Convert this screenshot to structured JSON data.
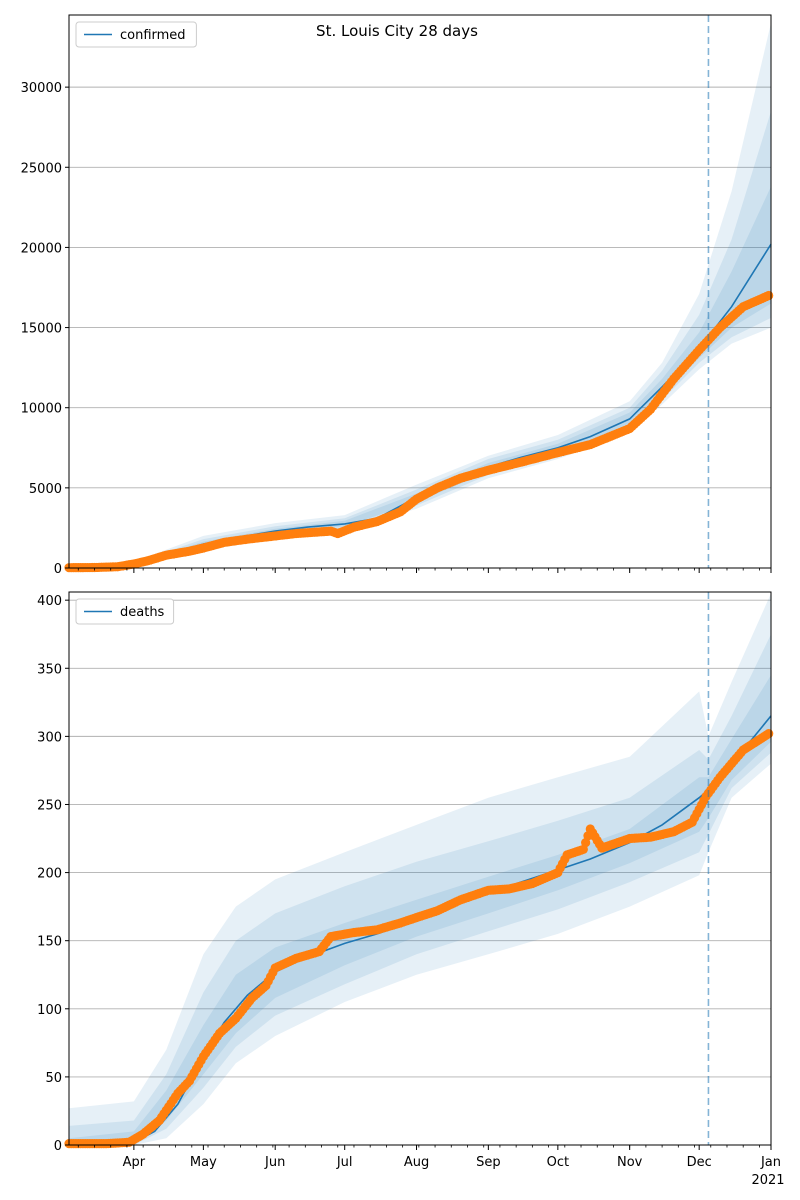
{
  "title": "St. Louis City 28 days",
  "colors": {
    "line": "#1f77b4",
    "band": "#1f77b4",
    "points": "#ff7f0e",
    "grid": "#b0b0b0",
    "vline": "#1f77b4"
  },
  "x_axis": {
    "start_date": "2020-03-04",
    "end_date": "2021-01-01",
    "tick_labels": [
      {
        "date": "2020-04-01",
        "label": "Apr"
      },
      {
        "date": "2020-05-01",
        "label": "May"
      },
      {
        "date": "2020-06-01",
        "label": "Jun"
      },
      {
        "date": "2020-07-01",
        "label": "Jul"
      },
      {
        "date": "2020-08-01",
        "label": "Aug"
      },
      {
        "date": "2020-09-01",
        "label": "Sep"
      },
      {
        "date": "2020-10-01",
        "label": "Oct"
      },
      {
        "date": "2020-11-01",
        "label": "Nov"
      },
      {
        "date": "2020-12-01",
        "label": "Dec"
      },
      {
        "date": "2021-01-01",
        "label": "Jan"
      }
    ],
    "year_label": "2021",
    "forecast_date": "2020-12-05"
  },
  "chart_data": [
    {
      "type": "line",
      "legend": "confirmed",
      "legend_position": "top-left",
      "grid": "horizontal",
      "ylim": [
        0,
        34500
      ],
      "yticks": [
        0,
        5000,
        10000,
        15000,
        20000,
        25000,
        30000
      ],
      "model": {
        "x": [
          "2020-03-04",
          "2020-03-20",
          "2020-04-01",
          "2020-04-15",
          "2020-05-01",
          "2020-05-15",
          "2020-06-01",
          "2020-06-15",
          "2020-07-01",
          "2020-07-15",
          "2020-08-01",
          "2020-08-15",
          "2020-09-01",
          "2020-09-15",
          "2020-10-01",
          "2020-10-15",
          "2020-11-01",
          "2020-11-15",
          "2020-12-01",
          "2020-12-15",
          "2021-01-01"
        ],
        "y": [
          0,
          10,
          200,
          800,
          1500,
          1900,
          2300,
          2550,
          2750,
          3100,
          4400,
          5500,
          6300,
          6900,
          7500,
          8200,
          9300,
          11300,
          13700,
          16300,
          20200
        ]
      },
      "bands": [
        {
          "x": [
            "2020-03-04",
            "2020-04-01",
            "2020-05-01",
            "2020-06-01",
            "2020-07-01",
            "2020-08-01",
            "2020-09-01",
            "2020-10-01",
            "2020-11-01",
            "2020-11-15",
            "2020-12-01",
            "2020-12-15",
            "2021-01-01"
          ],
          "lower": [
            0,
            120,
            1100,
            1800,
            2300,
            3700,
            5600,
            6800,
            8400,
            10200,
            12400,
            14000,
            15000
          ],
          "upper": [
            0,
            400,
            2000,
            2800,
            3300,
            5200,
            7000,
            8300,
            10400,
            12800,
            17100,
            23500,
            34000
          ]
        },
        {
          "x": [
            "2020-03-04",
            "2020-04-01",
            "2020-05-01",
            "2020-06-01",
            "2020-07-01",
            "2020-08-01",
            "2020-09-01",
            "2020-10-01",
            "2020-11-01",
            "2020-11-15",
            "2020-12-01",
            "2020-12-15",
            "2021-01-01"
          ],
          "lower": [
            0,
            150,
            1250,
            1950,
            2450,
            3900,
            5800,
            7000,
            8600,
            10500,
            12800,
            14400,
            15600
          ],
          "upper": [
            0,
            330,
            1800,
            2600,
            3100,
            4900,
            6800,
            8000,
            10000,
            12300,
            15800,
            20500,
            28500
          ]
        },
        {
          "x": [
            "2020-03-04",
            "2020-04-01",
            "2020-05-01",
            "2020-06-01",
            "2020-07-01",
            "2020-08-01",
            "2020-09-01",
            "2020-10-01",
            "2020-11-01",
            "2020-11-15",
            "2020-12-01",
            "2020-12-15",
            "2021-01-01"
          ],
          "lower": [
            0,
            170,
            1350,
            2100,
            2600,
            4100,
            6000,
            7200,
            8900,
            10800,
            13100,
            15000,
            16500
          ],
          "upper": [
            0,
            270,
            1650,
            2450,
            2950,
            4650,
            6550,
            7750,
            9700,
            11800,
            14700,
            18500,
            23800
          ]
        }
      ],
      "observed": {
        "x": [
          "2020-03-04",
          "2020-03-15",
          "2020-03-25",
          "2020-04-01",
          "2020-04-07",
          "2020-04-15",
          "2020-04-25",
          "2020-05-01",
          "2020-05-10",
          "2020-05-20",
          "2020-06-01",
          "2020-06-10",
          "2020-06-20",
          "2020-06-25",
          "2020-06-28",
          "2020-07-05",
          "2020-07-15",
          "2020-07-25",
          "2020-08-01",
          "2020-08-10",
          "2020-08-20",
          "2020-09-01",
          "2020-09-15",
          "2020-10-01",
          "2020-10-15",
          "2020-11-01",
          "2020-11-10",
          "2020-11-20",
          "2020-12-01",
          "2020-12-10",
          "2020-12-20",
          "2020-12-31"
        ],
        "y": [
          20,
          30,
          80,
          250,
          450,
          800,
          1050,
          1250,
          1600,
          1800,
          2000,
          2150,
          2250,
          2300,
          2150,
          2550,
          2900,
          3500,
          4300,
          5000,
          5600,
          6100,
          6600,
          7200,
          7700,
          8700,
          9900,
          11800,
          13600,
          15000,
          16300,
          17000
        ]
      }
    },
    {
      "type": "line",
      "legend": "deaths",
      "legend_position": "top-left",
      "grid": "horizontal",
      "ylim": [
        0,
        406
      ],
      "yticks": [
        0,
        50,
        100,
        150,
        200,
        250,
        300,
        350,
        400
      ],
      "model": {
        "x": [
          "2020-03-04",
          "2020-03-20",
          "2020-04-01",
          "2020-04-10",
          "2020-04-20",
          "2020-05-01",
          "2020-05-10",
          "2020-05-20",
          "2020-06-01",
          "2020-06-15",
          "2020-07-01",
          "2020-07-15",
          "2020-08-01",
          "2020-08-15",
          "2020-09-01",
          "2020-09-15",
          "2020-10-01",
          "2020-10-15",
          "2020-11-01",
          "2020-11-15",
          "2020-12-01",
          "2020-12-10",
          "2020-12-20",
          "2021-01-01"
        ],
        "y": [
          0,
          0,
          2,
          10,
          30,
          65,
          90,
          110,
          127,
          138,
          148,
          155,
          165,
          175,
          185,
          193,
          202,
          210,
          222,
          235,
          255,
          268,
          290,
          315
        ]
      },
      "bands": [
        {
          "x": [
            "2020-03-04",
            "2020-04-01",
            "2020-04-15",
            "2020-05-01",
            "2020-05-15",
            "2020-06-01",
            "2020-07-01",
            "2020-08-01",
            "2020-09-01",
            "2020-10-01",
            "2020-11-01",
            "2020-12-01",
            "2020-12-05",
            "2020-12-15",
            "2021-01-01"
          ],
          "lower": [
            0,
            0,
            5,
            30,
            60,
            80,
            105,
            125,
            140,
            155,
            175,
            198,
            215,
            255,
            280
          ],
          "upper": [
            27,
            32,
            70,
            140,
            175,
            195,
            215,
            235,
            255,
            270,
            285,
            333,
            300,
            340,
            405
          ]
        },
        {
          "x": [
            "2020-03-04",
            "2020-04-01",
            "2020-04-15",
            "2020-05-01",
            "2020-05-15",
            "2020-06-01",
            "2020-07-01",
            "2020-08-01",
            "2020-09-01",
            "2020-10-01",
            "2020-11-01",
            "2020-12-01",
            "2020-12-05",
            "2020-12-15",
            "2021-01-01"
          ],
          "lower": [
            0,
            0,
            12,
            42,
            72,
            95,
            118,
            140,
            157,
            173,
            193,
            215,
            228,
            262,
            288
          ],
          "upper": [
            14,
            18,
            52,
            112,
            150,
            170,
            190,
            208,
            223,
            238,
            255,
            290,
            283,
            315,
            375
          ]
        },
        {
          "x": [
            "2020-03-04",
            "2020-04-01",
            "2020-04-15",
            "2020-05-01",
            "2020-05-15",
            "2020-06-01",
            "2020-07-01",
            "2020-08-01",
            "2020-09-01",
            "2020-10-01",
            "2020-11-01",
            "2020-12-01",
            "2020-12-05",
            "2020-12-15",
            "2021-01-01"
          ],
          "lower": [
            0,
            0,
            18,
            52,
            82,
            108,
            132,
            153,
            170,
            187,
            207,
            230,
            240,
            268,
            296
          ],
          "upper": [
            5,
            10,
            40,
            88,
            125,
            145,
            163,
            180,
            197,
            213,
            232,
            270,
            270,
            298,
            345
          ]
        }
      ],
      "observed": {
        "x": [
          "2020-03-04",
          "2020-03-20",
          "2020-03-30",
          "2020-04-05",
          "2020-04-12",
          "2020-04-20",
          "2020-04-25",
          "2020-05-01",
          "2020-05-08",
          "2020-05-15",
          "2020-05-22",
          "2020-05-28",
          "2020-06-01",
          "2020-06-10",
          "2020-06-20",
          "2020-06-25",
          "2020-07-05",
          "2020-07-15",
          "2020-07-25",
          "2020-08-01",
          "2020-08-10",
          "2020-08-20",
          "2020-09-01",
          "2020-09-10",
          "2020-09-20",
          "2020-10-01",
          "2020-10-05",
          "2020-10-12",
          "2020-10-15",
          "2020-10-20",
          "2020-11-01",
          "2020-11-10",
          "2020-11-20",
          "2020-11-28",
          "2020-12-04",
          "2020-12-10",
          "2020-12-20",
          "2020-12-31"
        ],
        "y": [
          1,
          1,
          2,
          8,
          18,
          38,
          47,
          65,
          82,
          93,
          108,
          117,
          130,
          137,
          142,
          153,
          156,
          158,
          163,
          167,
          172,
          180,
          187,
          188,
          192,
          200,
          213,
          217,
          232,
          218,
          225,
          226,
          230,
          237,
          256,
          270,
          290,
          302
        ]
      }
    }
  ]
}
